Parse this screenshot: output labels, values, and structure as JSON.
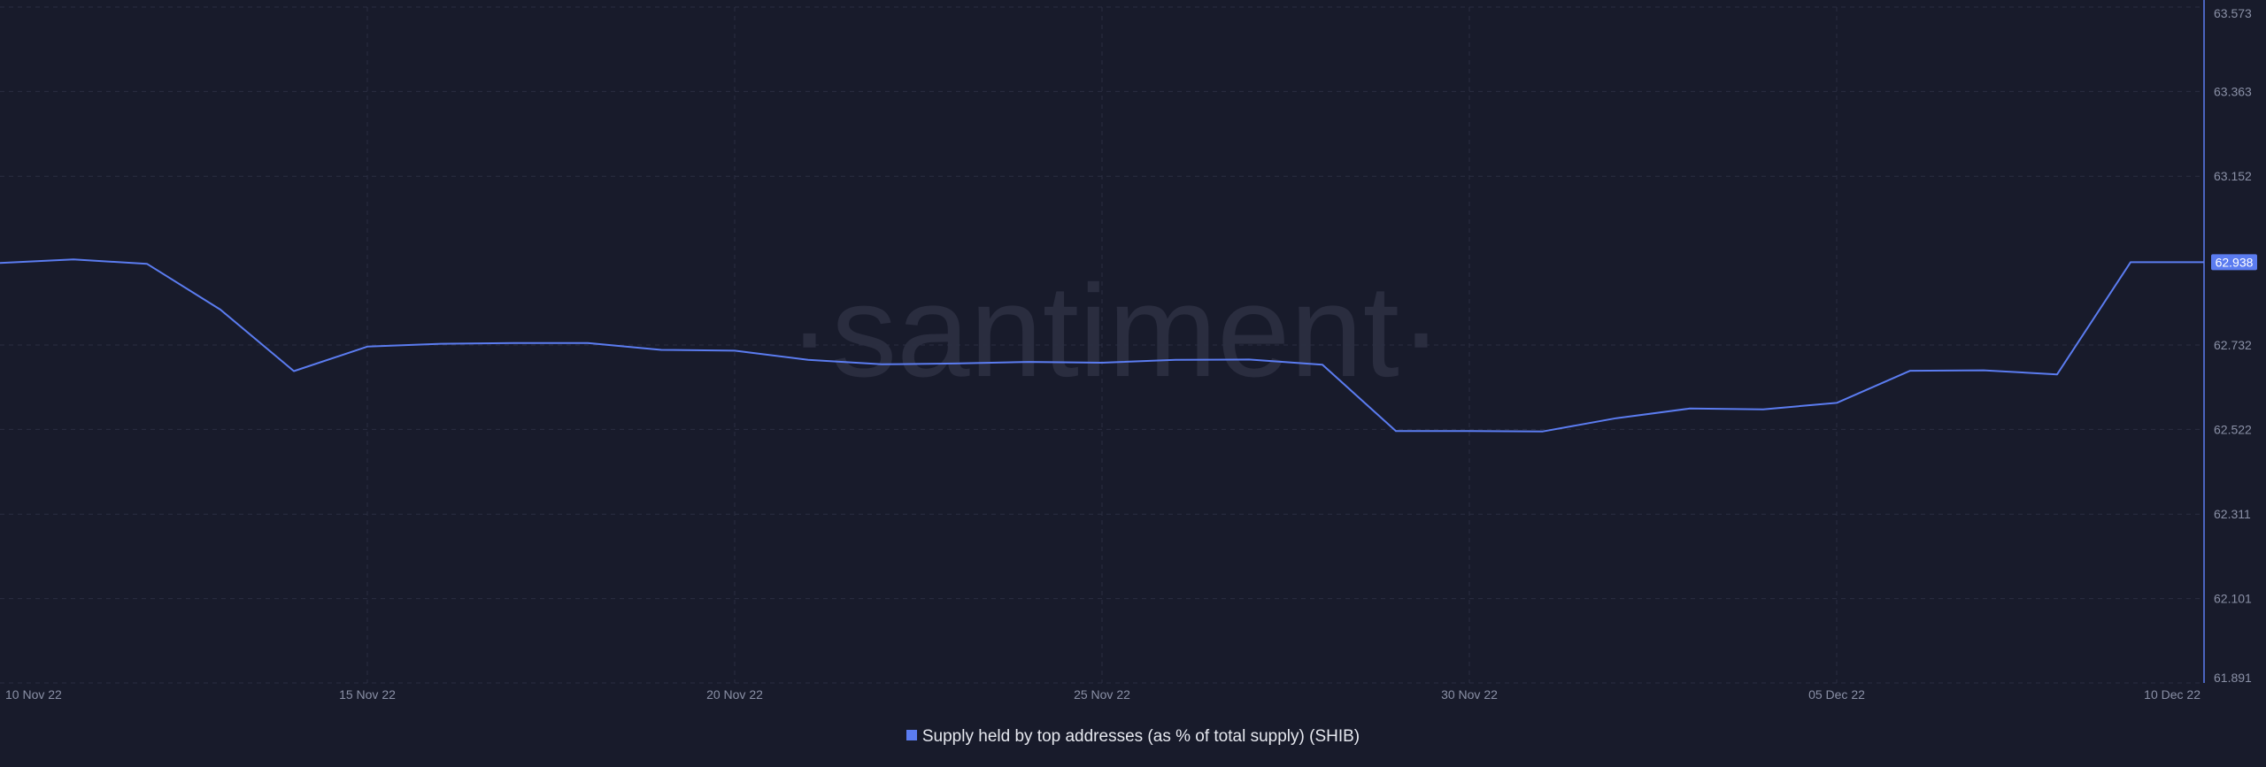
{
  "watermark": "·santiment·",
  "colors": {
    "background": "#181b2b",
    "grid": "#2a2e42",
    "line": "#5b7cf0",
    "axis_line": "#5b7cf0",
    "tick_text": "#8a90a6",
    "label_bg": "#5b7cf0",
    "label_text": "#ffffff",
    "watermark": "#2a2d3f"
  },
  "chart_data": {
    "type": "line",
    "title": "",
    "xlabel": "",
    "ylabel": "",
    "grid": true,
    "legend_position": "bottom-center",
    "y_axis_position": "right",
    "ylim": [
      61.891,
      63.573
    ],
    "y_ticks": [
      "63.573",
      "63.363",
      "63.152",
      "62.732",
      "62.522",
      "62.311",
      "62.101",
      "61.891"
    ],
    "x_ticks": [
      {
        "label": "10 Nov 22",
        "date": "2022-11-10"
      },
      {
        "label": "15 Nov 22",
        "date": "2022-11-15"
      },
      {
        "label": "20 Nov 22",
        "date": "2022-11-20"
      },
      {
        "label": "25 Nov 22",
        "date": "2022-11-25"
      },
      {
        "label": "30 Nov 22",
        "date": "2022-11-30"
      },
      {
        "label": "05 Dec 22",
        "date": "2022-12-05"
      },
      {
        "label": "10 Dec 22",
        "date": "2022-12-10"
      }
    ],
    "current_value_label": "62.938",
    "series": [
      {
        "name": "Supply held by top addresses (as % of total supply) (SHIB)",
        "x": [
          "2022-11-10",
          "2022-11-11",
          "2022-11-12",
          "2022-11-13",
          "2022-11-14",
          "2022-11-15",
          "2022-11-16",
          "2022-11-17",
          "2022-11-18",
          "2022-11-19",
          "2022-11-20",
          "2022-11-21",
          "2022-11-22",
          "2022-11-23",
          "2022-11-24",
          "2022-11-25",
          "2022-11-26",
          "2022-11-27",
          "2022-11-28",
          "2022-11-29",
          "2022-11-30",
          "2022-12-01",
          "2022-12-02",
          "2022-12-03",
          "2022-12-04",
          "2022-12-05",
          "2022-12-06",
          "2022-12-07",
          "2022-12-08",
          "2022-12-09",
          "2022-12-10"
        ],
        "values": [
          62.936,
          62.945,
          62.934,
          62.82,
          62.667,
          62.728,
          62.735,
          62.737,
          62.737,
          62.72,
          62.718,
          62.695,
          62.684,
          62.686,
          62.69,
          62.688,
          62.695,
          62.696,
          62.683,
          62.518,
          62.518,
          62.517,
          62.55,
          62.574,
          62.572,
          62.588,
          62.668,
          62.669,
          62.659,
          62.938,
          62.938
        ]
      }
    ]
  }
}
